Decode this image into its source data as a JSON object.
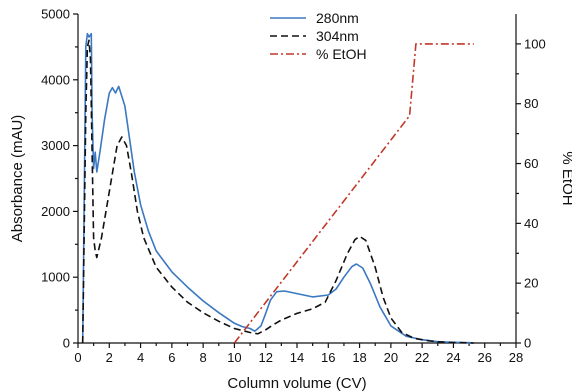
{
  "chart_data": {
    "type": "line",
    "xlabel": "Column volume (CV)",
    "ylabel_left": "Absorbance (mAU)",
    "ylabel_right": "% EtOH",
    "xlim": [
      0,
      28
    ],
    "ylim_left": [
      0,
      5000
    ],
    "ylim_right": [
      0,
      110
    ],
    "x_ticks": [
      0,
      2,
      4,
      6,
      8,
      10,
      12,
      14,
      16,
      18,
      20,
      22,
      24,
      26,
      28
    ],
    "y_left_ticks": [
      0,
      1000,
      2000,
      3000,
      4000,
      5000
    ],
    "y_right_ticks": [
      0,
      20,
      40,
      60,
      80,
      100
    ],
    "legend_position": "top-center",
    "grid": false,
    "series": [
      {
        "name": "280nm",
        "axis": "left",
        "color": "#3b78c2",
        "style": "solid",
        "points": [
          [
            0.3,
            0
          ],
          [
            0.5,
            4500
          ],
          [
            0.6,
            4700
          ],
          [
            0.7,
            4650
          ],
          [
            0.85,
            4700
          ],
          [
            0.9,
            3500
          ],
          [
            1.0,
            2650
          ],
          [
            1.1,
            2900
          ],
          [
            1.2,
            2600
          ],
          [
            1.4,
            2900
          ],
          [
            1.7,
            3400
          ],
          [
            2.0,
            3800
          ],
          [
            2.2,
            3880
          ],
          [
            2.4,
            3800
          ],
          [
            2.6,
            3900
          ],
          [
            2.8,
            3750
          ],
          [
            3.0,
            3600
          ],
          [
            3.3,
            3100
          ],
          [
            3.6,
            2600
          ],
          [
            4.0,
            2100
          ],
          [
            4.5,
            1700
          ],
          [
            5.0,
            1400
          ],
          [
            6.0,
            1080
          ],
          [
            7.0,
            850
          ],
          [
            8.0,
            640
          ],
          [
            9.0,
            460
          ],
          [
            10.0,
            300
          ],
          [
            10.5,
            250
          ],
          [
            11.0,
            220
          ],
          [
            11.3,
            180
          ],
          [
            11.7,
            260
          ],
          [
            12.0,
            450
          ],
          [
            12.3,
            650
          ],
          [
            12.7,
            780
          ],
          [
            13.2,
            790
          ],
          [
            14.0,
            750
          ],
          [
            15.0,
            700
          ],
          [
            16.0,
            730
          ],
          [
            16.5,
            820
          ],
          [
            17.0,
            1000
          ],
          [
            17.5,
            1160
          ],
          [
            17.8,
            1200
          ],
          [
            18.2,
            1140
          ],
          [
            18.7,
            900
          ],
          [
            19.3,
            550
          ],
          [
            20.0,
            260
          ],
          [
            21.0,
            100
          ],
          [
            22.0,
            50
          ],
          [
            23.0,
            20
          ],
          [
            24.0,
            10
          ],
          [
            25.0,
            5
          ],
          [
            25.3,
            0
          ]
        ]
      },
      {
        "name": "304nm",
        "axis": "left",
        "color": "#111111",
        "style": "dashed",
        "points": [
          [
            0.3,
            0
          ],
          [
            0.5,
            3500
          ],
          [
            0.6,
            4500
          ],
          [
            0.7,
            4600
          ],
          [
            0.8,
            4300
          ],
          [
            0.9,
            2900
          ],
          [
            1.0,
            1600
          ],
          [
            1.1,
            1400
          ],
          [
            1.2,
            1300
          ],
          [
            1.5,
            1600
          ],
          [
            2.0,
            2300
          ],
          [
            2.5,
            3000
          ],
          [
            2.8,
            3130
          ],
          [
            3.1,
            3000
          ],
          [
            3.4,
            2600
          ],
          [
            3.8,
            2000
          ],
          [
            4.2,
            1600
          ],
          [
            5.0,
            1150
          ],
          [
            6.0,
            850
          ],
          [
            7.0,
            620
          ],
          [
            8.0,
            460
          ],
          [
            9.0,
            330
          ],
          [
            10.0,
            220
          ],
          [
            11.0,
            160
          ],
          [
            11.5,
            140
          ],
          [
            12.0,
            200
          ],
          [
            12.5,
            280
          ],
          [
            13.0,
            350
          ],
          [
            14.0,
            450
          ],
          [
            15.0,
            520
          ],
          [
            15.8,
            620
          ],
          [
            16.5,
            950
          ],
          [
            17.2,
            1350
          ],
          [
            17.7,
            1570
          ],
          [
            18.0,
            1620
          ],
          [
            18.4,
            1560
          ],
          [
            19.0,
            1150
          ],
          [
            19.5,
            700
          ],
          [
            20.0,
            380
          ],
          [
            20.7,
            160
          ],
          [
            21.5,
            70
          ],
          [
            22.5,
            30
          ],
          [
            23.5,
            10
          ],
          [
            24.5,
            5
          ],
          [
            25.3,
            0
          ]
        ]
      },
      {
        "name": "% EtOH",
        "axis": "right",
        "color": "#c0392b",
        "style": "dashdot",
        "points": [
          [
            10.0,
            0
          ],
          [
            21.2,
            76
          ],
          [
            21.6,
            100
          ],
          [
            25.3,
            100
          ]
        ]
      }
    ]
  }
}
